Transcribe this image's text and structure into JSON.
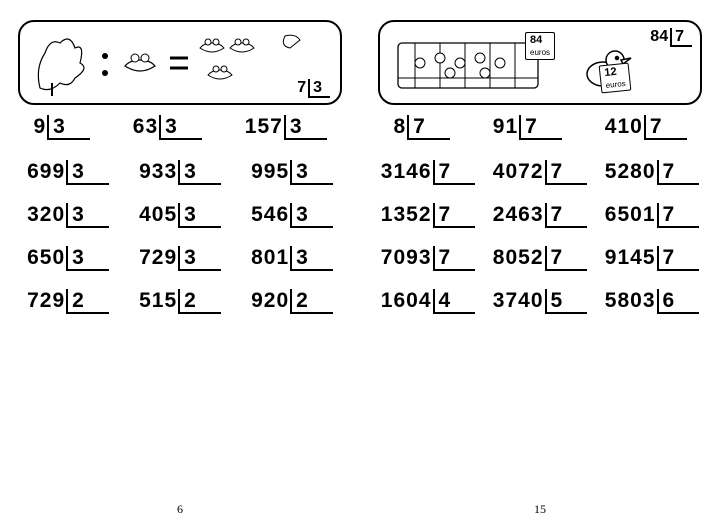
{
  "left_page": {
    "number": "6",
    "illus_problem": {
      "dividend": "7",
      "divisor": "3"
    },
    "rows": [
      [
        {
          "d": "9",
          "v": "3"
        },
        {
          "d": "63",
          "v": "3"
        },
        {
          "d": "157",
          "v": "3"
        }
      ],
      [
        {
          "d": "699",
          "v": "3"
        },
        {
          "d": "933",
          "v": "3"
        },
        {
          "d": "995",
          "v": "3"
        }
      ],
      [
        {
          "d": "320",
          "v": "3"
        },
        {
          "d": "405",
          "v": "3"
        },
        {
          "d": "546",
          "v": "3"
        }
      ],
      [
        {
          "d": "650",
          "v": "3"
        },
        {
          "d": "729",
          "v": "3"
        },
        {
          "d": "801",
          "v": "3"
        }
      ],
      [
        {
          "d": "729",
          "v": "2"
        },
        {
          "d": "515",
          "v": "2"
        },
        {
          "d": "920",
          "v": "2"
        }
      ]
    ]
  },
  "right_page": {
    "number": "15",
    "illus_problem": {
      "dividend": "84",
      "divisor": "7"
    },
    "sign1": "84",
    "sign1_unit": "euros",
    "sign2": "12",
    "sign2_unit": "euros",
    "rows": [
      [
        {
          "d": "8",
          "v": "7"
        },
        {
          "d": "91",
          "v": "7"
        },
        {
          "d": "410",
          "v": "7"
        }
      ],
      [
        {
          "d": "3146",
          "v": "7"
        },
        {
          "d": "4072",
          "v": "7"
        },
        {
          "d": "5280",
          "v": "7"
        }
      ],
      [
        {
          "d": "1352",
          "v": "7"
        },
        {
          "d": "2463",
          "v": "7"
        },
        {
          "d": "6501",
          "v": "7"
        }
      ],
      [
        {
          "d": "7093",
          "v": "7"
        },
        {
          "d": "8052",
          "v": "7"
        },
        {
          "d": "9145",
          "v": "7"
        }
      ],
      [
        {
          "d": "1604",
          "v": "4"
        },
        {
          "d": "3740",
          "v": "5"
        },
        {
          "d": "5803",
          "v": "6"
        }
      ]
    ]
  }
}
